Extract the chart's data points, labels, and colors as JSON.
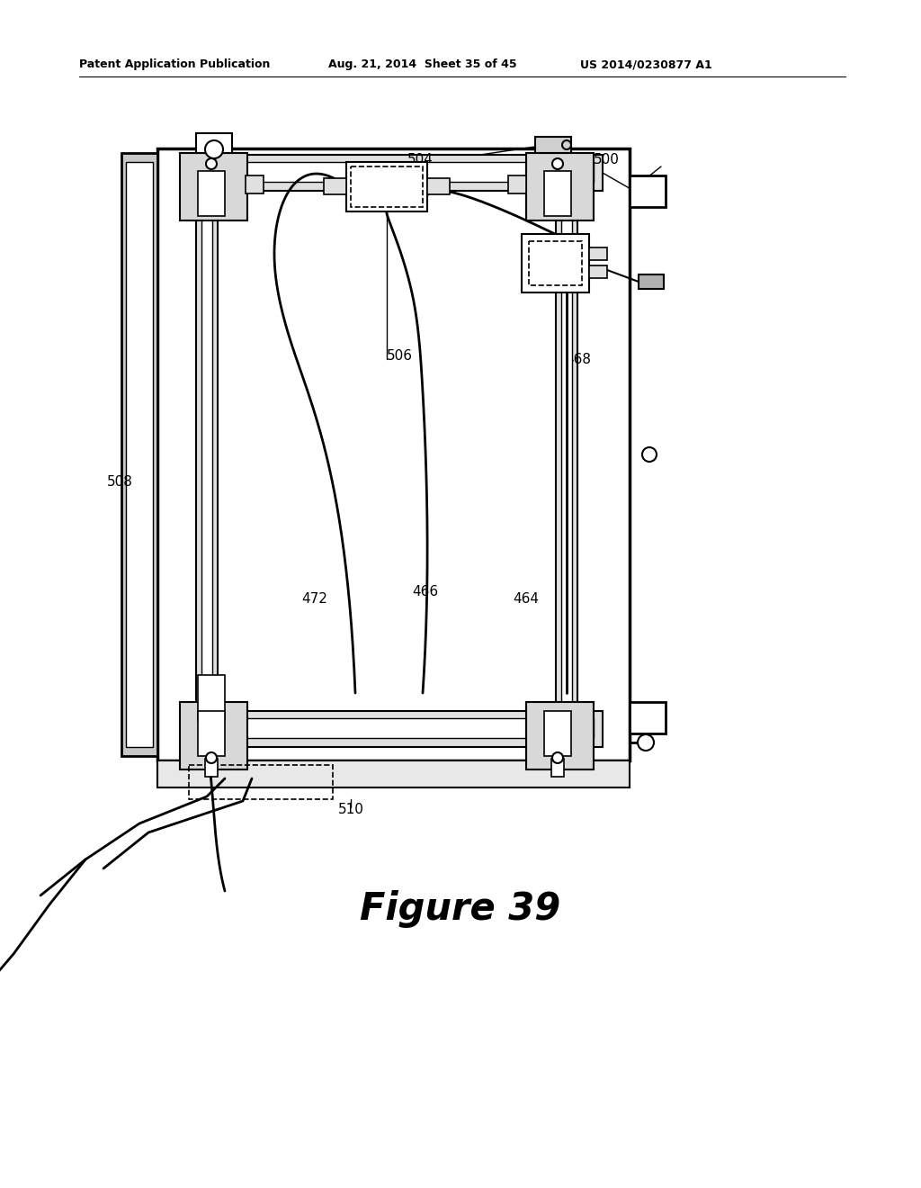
{
  "title_left": "Patent Application Publication",
  "title_center": "Aug. 21, 2014  Sheet 35 of 45",
  "title_right": "US 2014/0230877 A1",
  "figure_label": "Figure 39",
  "background_color": "#ffffff",
  "fig_width": 10.24,
  "fig_height": 13.2
}
